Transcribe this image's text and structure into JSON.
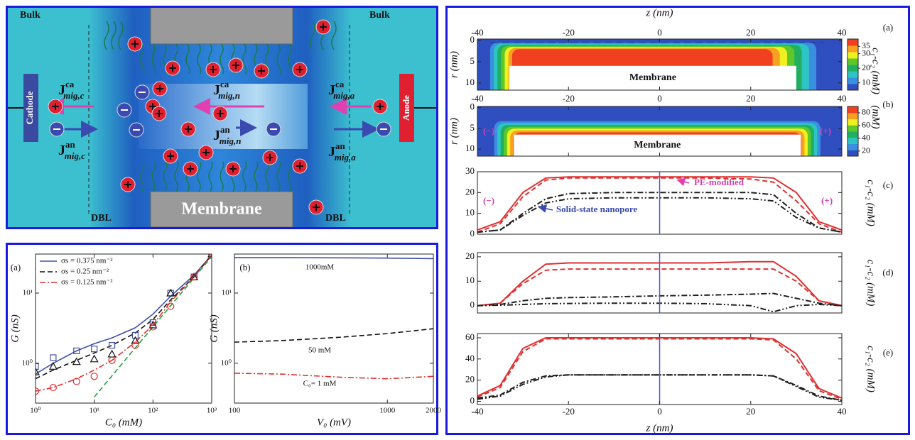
{
  "diagram": {
    "labels": {
      "bulk_left": "Bulk",
      "bulk_right": "Bulk",
      "membrane": "Membrane",
      "dbl_left": "DBL",
      "dbl_right": "DBL",
      "cathode": "Cathode",
      "anode": "Anode"
    },
    "fluxes": [
      {
        "main": "J",
        "sup": "ca",
        "sub": "mig,c"
      },
      {
        "main": "J",
        "sup": "an",
        "sub": "mig,c"
      },
      {
        "main": "J",
        "sup": "ca",
        "sub": "mig,n"
      },
      {
        "main": "J",
        "sup": "an",
        "sub": "mig,n"
      },
      {
        "main": "J",
        "sup": "ca",
        "sub": "mig,a"
      },
      {
        "main": "J",
        "sup": "an",
        "sub": "mig,a"
      }
    ]
  },
  "chart_data": [
    {
      "type": "line",
      "panel_label": "(a)",
      "x_label": "C₀ (mM)",
      "y_label": "G (nS)",
      "log_x": true,
      "log_y": true,
      "xlim": [
        1,
        1000
      ],
      "ylim": [
        0.27,
        36
      ],
      "xticks": [
        {
          "value": 1,
          "label": "10⁰"
        },
        {
          "value": 10,
          "label": "10¹"
        },
        {
          "value": 100,
          "label": "10²"
        },
        {
          "value": 1000,
          "label": "10³"
        }
      ],
      "yticks": [
        {
          "value": 1,
          "label": "10⁰"
        },
        {
          "value": 10,
          "label": "10¹"
        }
      ],
      "legend": "upper left",
      "x": [
        1,
        2,
        5,
        10,
        20,
        50,
        100,
        200,
        500,
        1000
      ],
      "series": [
        {
          "name": "σs = 0.375 nm⁻²",
          "color": "#4050a8",
          "dash": "solid",
          "values": [
            0.7,
            1.0,
            1.5,
            1.9,
            2.3,
            3.2,
            5,
            9,
            18,
            35
          ]
        },
        {
          "name": "σs = 0.25 nm⁻²",
          "color": "#111111",
          "dash": "dash",
          "values": [
            0.6,
            0.8,
            1.1,
            1.4,
            1.8,
            2.7,
            4.2,
            8,
            17,
            35
          ]
        },
        {
          "name": "σs = 0.125 nm⁻²",
          "color": "#e03030",
          "dash": "dashdot",
          "values": [
            0.4,
            0.45,
            0.6,
            0.8,
            1.1,
            2,
            3.5,
            7.5,
            17,
            35
          ]
        },
        {
          "color": "#20a040",
          "dash": "dash",
          "values": [
            null,
            null,
            null,
            0.33,
            0.66,
            1.65,
            3.3,
            6.6,
            16.5,
            33
          ]
        },
        {
          "color": "#4050a8",
          "marker": "square",
          "values": [
            0.9,
            1.2,
            1.5,
            1.6,
            1.8,
            2.5,
            3.8,
            10,
            17,
            36
          ]
        },
        {
          "color": "#111111",
          "marker": "triangle",
          "values": [
            0.75,
            0.9,
            1.05,
            1.15,
            1.35,
            2.1,
            3.5,
            10,
            17,
            36
          ]
        },
        {
          "color": "#e03030",
          "marker": "circle",
          "values": [
            0.4,
            0.45,
            0.55,
            0.65,
            1.1,
            1.8,
            3.3,
            6.5,
            17,
            36
          ]
        }
      ]
    },
    {
      "type": "line",
      "panel_label": "(b)",
      "x_label": "V₀ (mV)",
      "y_label": "G (nS)",
      "log_x": true,
      "log_y": true,
      "xlim": [
        100,
        2000
      ],
      "ylim": [
        0.27,
        36
      ],
      "xticks": [
        100,
        1000,
        2000
      ],
      "yticks": [
        {
          "value": 1,
          "label": "10⁰"
        },
        {
          "value": 10,
          "label": "10¹"
        }
      ],
      "legend": "inline",
      "x": [
        100,
        200,
        500,
        1000,
        2000
      ],
      "series": [
        {
          "name": "1000mM",
          "color": "#4050a8",
          "dash": "solid",
          "values": [
            32,
            32,
            31.8,
            31.5,
            31
          ]
        },
        {
          "name": "50 mM",
          "color": "#111111",
          "dash": "dash",
          "values": [
            2.0,
            2.1,
            2.35,
            2.65,
            3.1
          ]
        },
        {
          "name": "C₀= 1 mM",
          "color": "#e03030",
          "dash": "dashdot",
          "values": [
            0.72,
            0.7,
            0.63,
            0.6,
            0.65
          ]
        }
      ]
    },
    {
      "type": "contour",
      "panel_label": "(a)",
      "x_label": "z (nm)",
      "y_label": "r (nm)",
      "annotation": "Membrane",
      "xlim": [
        -40,
        40
      ],
      "xticks": [
        -40,
        -20,
        0,
        20,
        40
      ],
      "ylim": [
        -0.3,
        11.7
      ],
      "y_inverted": true,
      "yticks": [
        0,
        5,
        10
      ],
      "colorbar": {
        "label": "c₁-c₂ (mM)",
        "clim": [
          5,
          40
        ],
        "ticks": [
          10,
          20,
          30,
          35
        ],
        "colors": [
          "#2f4fc0",
          "#3a8fe0",
          "#2ec4c4",
          "#20b060",
          "#5ec82a",
          "#f0f020",
          "#f8a020",
          "#f04020"
        ]
      }
    },
    {
      "type": "contour",
      "panel_label": "(b)",
      "y_label": "r (nm)",
      "annotation": "Membrane",
      "annotations": [
        "(−)",
        "(+)"
      ],
      "xlim": [
        -40,
        40
      ],
      "xticks": [
        -40,
        -20,
        0,
        20,
        40
      ],
      "ylim": [
        -0.3,
        11.7
      ],
      "y_inverted": true,
      "yticks": [
        0,
        5,
        10
      ],
      "colorbar": {
        "label": "(mM)",
        "clim": [
          12,
          90
        ],
        "ticks": [
          20,
          40,
          60,
          80
        ],
        "colors": [
          "#2f4fc0",
          "#3a8fe0",
          "#2ec4c4",
          "#20b060",
          "#5ec82a",
          "#f0f020",
          "#f8a020",
          "#f04020"
        ]
      }
    },
    {
      "type": "line",
      "panel_label": "(c)",
      "y_label": "c₁-c₂ (mM)",
      "annotations": [
        "PE-modified",
        "Solid-state nanopore",
        "(−)",
        "(+)"
      ],
      "xlim": [
        -40,
        40
      ],
      "ylim": [
        0,
        30
      ],
      "yticks": [
        0,
        10,
        20,
        30
      ],
      "x": [
        -40,
        -35,
        -30,
        -25,
        -20,
        -10,
        0,
        10,
        20,
        25,
        30,
        35,
        40
      ],
      "series": [
        {
          "color": "#e03030",
          "dash": "solid",
          "values": [
            2,
            6,
            20,
            27,
            27.5,
            27.5,
            27.5,
            27.5,
            27.5,
            27,
            20,
            6,
            2
          ]
        },
        {
          "color": "#e03030",
          "dash": "dash",
          "values": [
            1,
            5,
            18,
            26,
            27,
            27,
            27,
            27,
            26.5,
            25,
            16,
            5,
            1
          ]
        },
        {
          "color": "#202020",
          "dash": "dashdot",
          "values": [
            1,
            2,
            10,
            17,
            19.5,
            20,
            20,
            20,
            20,
            19,
            10,
            3,
            1
          ]
        },
        {
          "color": "#202020",
          "dash": "dashdotdot",
          "values": [
            1,
            2,
            9,
            15,
            17,
            17.5,
            17.5,
            17.5,
            17,
            16,
            8,
            3,
            1
          ]
        }
      ]
    },
    {
      "type": "line",
      "panel_label": "(d)",
      "y_label": "c₁-c₂ (mM)",
      "xlim": [
        -40,
        40
      ],
      "ylim": [
        -3,
        21.7
      ],
      "yticks": [
        0,
        10,
        20
      ],
      "x": [
        -40,
        -35,
        -30,
        -25,
        -20,
        -10,
        0,
        10,
        20,
        25,
        30,
        35,
        40
      ],
      "series": [
        {
          "color": "#e03030",
          "dash": "solid",
          "values": [
            0,
            1,
            10,
            17,
            17.5,
            17.5,
            17.5,
            17.5,
            18,
            18,
            12,
            2,
            0
          ]
        },
        {
          "color": "#e03030",
          "dash": "dash",
          "values": [
            0,
            1,
            9,
            14.5,
            15,
            15,
            15,
            15,
            15,
            15,
            10,
            2,
            0
          ]
        },
        {
          "color": "#202020",
          "dash": "dashdot",
          "values": [
            0,
            0.5,
            2,
            3,
            3.3,
            3.6,
            4,
            4.3,
            4.7,
            5,
            3,
            1,
            0
          ]
        },
        {
          "color": "#202020",
          "dash": "dashdotdot",
          "values": [
            0,
            0.2,
            0.5,
            0.8,
            0.9,
            1,
            1,
            0.8,
            0,
            -2.5,
            0,
            0.5,
            0
          ]
        }
      ]
    },
    {
      "type": "line",
      "panel_label": "(e)",
      "x_label": "z (nm)",
      "y_label": "c₁-c₂ (mM)",
      "xlim": [
        -40,
        40
      ],
      "xticks": [
        -40,
        -20,
        0,
        20,
        40
      ],
      "ylim": [
        -3,
        64
      ],
      "yticks": [
        0,
        20,
        40,
        60
      ],
      "x": [
        -40,
        -35,
        -30,
        -25,
        -20,
        -10,
        0,
        10,
        20,
        25,
        30,
        35,
        40
      ],
      "series": [
        {
          "color": "#e03030",
          "dash": "solid",
          "values": [
            5,
            15,
            50,
            60,
            60,
            60,
            60,
            60,
            60,
            59,
            45,
            12,
            3
          ]
        },
        {
          "color": "#e03030",
          "dash": "dash",
          "values": [
            4,
            13,
            47,
            59,
            59,
            59,
            59,
            59,
            59,
            58,
            40,
            10,
            2
          ]
        },
        {
          "color": "#202020",
          "dash": "dashdot",
          "values": [
            3,
            6,
            18,
            24,
            25,
            25,
            25,
            25,
            25,
            24,
            15,
            5,
            1
          ]
        },
        {
          "color": "#202020",
          "dash": "dashdotdot",
          "values": [
            2,
            5,
            16,
            23,
            25,
            25,
            25,
            25,
            25,
            24,
            14,
            4,
            1
          ]
        }
      ]
    }
  ]
}
